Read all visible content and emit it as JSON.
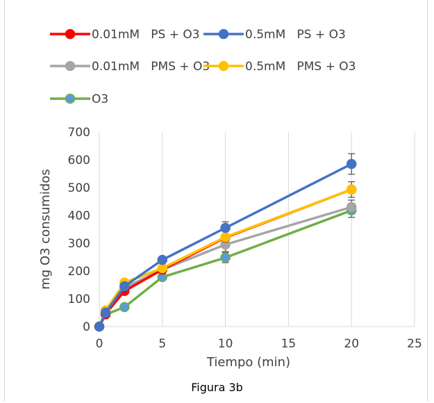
{
  "caption": "Figura 3b",
  "chart_data": {
    "type": "line",
    "xlabel": "Tiempo (min)",
    "ylabel": "mg O3 consumidos",
    "xlim": [
      0,
      25
    ],
    "ylim": [
      0,
      700
    ],
    "xticks": [
      "0",
      "5",
      "10",
      "15",
      "20",
      "25"
    ],
    "yticks": [
      "0",
      "100",
      "200",
      "300",
      "400",
      "500",
      "600",
      "700"
    ],
    "grid": "vertical",
    "legend_position": "top",
    "x": [
      0,
      0.5,
      2,
      5,
      10,
      20
    ],
    "series": [
      {
        "name": "0.01mM   PS + O3",
        "color": "#ff0000",
        "values": [
          0,
          45,
          128,
          205,
          320,
          493
        ],
        "errors": [
          0,
          0,
          0,
          0,
          0,
          0
        ]
      },
      {
        "name": "0.5mM   PS + O3",
        "color": "#4472c4",
        "values": [
          0,
          50,
          145,
          240,
          355,
          585
        ],
        "errors": [
          0,
          0,
          0,
          0,
          22,
          37
        ]
      },
      {
        "name": "0.01mM   PMS + O3",
        "color": "#a5a5a5",
        "values": [
          0,
          45,
          140,
          205,
          295,
          430
        ],
        "errors": [
          0,
          0,
          0,
          0,
          25,
          25
        ]
      },
      {
        "name": "0.5mM   PMS + O3",
        "color": "#ffc000",
        "values": [
          0,
          58,
          158,
          210,
          322,
          493
        ],
        "errors": [
          0,
          0,
          0,
          0,
          0,
          28
        ]
      },
      {
        "name": "O3",
        "color": "#70ad47",
        "marker_color": "#5b9bd5",
        "values": [
          0,
          43,
          70,
          178,
          248,
          418
        ],
        "errors": [
          0,
          0,
          0,
          0,
          18,
          25
        ]
      }
    ]
  }
}
